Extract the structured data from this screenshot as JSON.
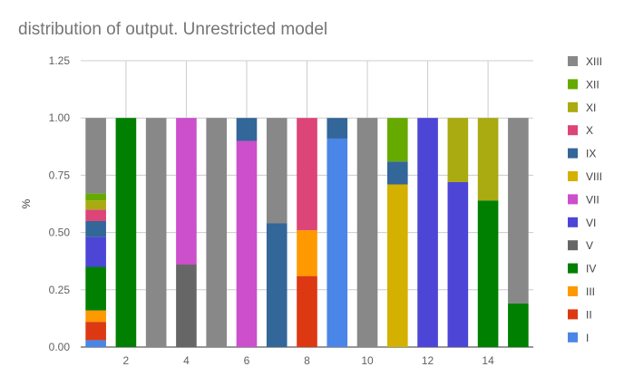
{
  "chart_data": {
    "type": "bar",
    "stacked": true,
    "title": "distribution of output. Unrestricted model",
    "xlabel": "",
    "ylabel": "%",
    "ylim": [
      0,
      1.25
    ],
    "yticks": [
      "0.00",
      "0.25",
      "0.50",
      "0.75",
      "1.00",
      "1.25"
    ],
    "ytick_values": [
      0,
      0.25,
      0.5,
      0.75,
      1.0,
      1.25
    ],
    "x": [
      1,
      2,
      3,
      4,
      5,
      6,
      7,
      8,
      9,
      10,
      11,
      12,
      13,
      14,
      15
    ],
    "xticks": [
      "2",
      "4",
      "6",
      "8",
      "10",
      "12",
      "14"
    ],
    "xtick_values": [
      2,
      4,
      6,
      8,
      10,
      12,
      14
    ],
    "grid": true,
    "legend_position": "right",
    "series": [
      {
        "name": "I",
        "color": "#4a86e8",
        "values": [
          0.03,
          0,
          0,
          0,
          0,
          0,
          0,
          0,
          0.91,
          0,
          0,
          0,
          0,
          0,
          0
        ]
      },
      {
        "name": "II",
        "color": "#dc3912",
        "values": [
          0.08,
          0,
          0,
          0,
          0,
          0,
          0,
          0.31,
          0,
          0,
          0,
          0,
          0,
          0,
          0
        ]
      },
      {
        "name": "III",
        "color": "#ff9900",
        "values": [
          0.05,
          0,
          0,
          0,
          0,
          0,
          0,
          0.2,
          0,
          0,
          0,
          0,
          0,
          0,
          0
        ]
      },
      {
        "name": "IV",
        "color": "#008000",
        "values": [
          0.19,
          1.0,
          0,
          0,
          0,
          0,
          0,
          0,
          0,
          0,
          0,
          0,
          0,
          0.64,
          0.19
        ]
      },
      {
        "name": "V",
        "color": "#666666",
        "values": [
          0,
          0,
          0,
          0.36,
          0,
          0,
          0,
          0,
          0,
          0,
          0,
          0,
          0,
          0,
          0
        ]
      },
      {
        "name": "VI",
        "color": "#4c45d6",
        "values": [
          0.13,
          0,
          0,
          0,
          0,
          0,
          0,
          0,
          0,
          0,
          0,
          1.0,
          0.72,
          0,
          0
        ]
      },
      {
        "name": "VII",
        "color": "#cc4fcc",
        "values": [
          0,
          0,
          0,
          0.64,
          0,
          0.9,
          0,
          0,
          0,
          0,
          0,
          0,
          0,
          0,
          0
        ]
      },
      {
        "name": "VIII",
        "color": "#d4b000",
        "values": [
          0,
          0,
          0,
          0,
          0,
          0,
          0,
          0,
          0,
          0,
          0.71,
          0,
          0,
          0,
          0
        ]
      },
      {
        "name": "IX",
        "color": "#336699",
        "values": [
          0.07,
          0,
          0,
          0,
          0,
          0.1,
          0.54,
          0,
          0.09,
          0,
          0.1,
          0,
          0,
          0,
          0
        ]
      },
      {
        "name": "X",
        "color": "#dd4477",
        "values": [
          0.05,
          0,
          0,
          0,
          0,
          0,
          0,
          0.49,
          0,
          0,
          0,
          0,
          0,
          0,
          0
        ]
      },
      {
        "name": "XI",
        "color": "#aaaa11",
        "values": [
          0.04,
          0,
          0,
          0,
          0,
          0,
          0,
          0,
          0,
          0,
          0,
          0,
          0.28,
          0.36,
          0
        ]
      },
      {
        "name": "XII",
        "color": "#66aa00",
        "values": [
          0.03,
          0,
          0,
          0,
          0,
          0,
          0,
          0,
          0,
          0,
          0.19,
          0,
          0,
          0,
          0
        ]
      },
      {
        "name": "XIII",
        "color": "#888888",
        "values": [
          0.33,
          0,
          1.0,
          0,
          1.0,
          0,
          0.46,
          0,
          0,
          1.0,
          0,
          0,
          0,
          0,
          0.81
        ]
      }
    ]
  }
}
